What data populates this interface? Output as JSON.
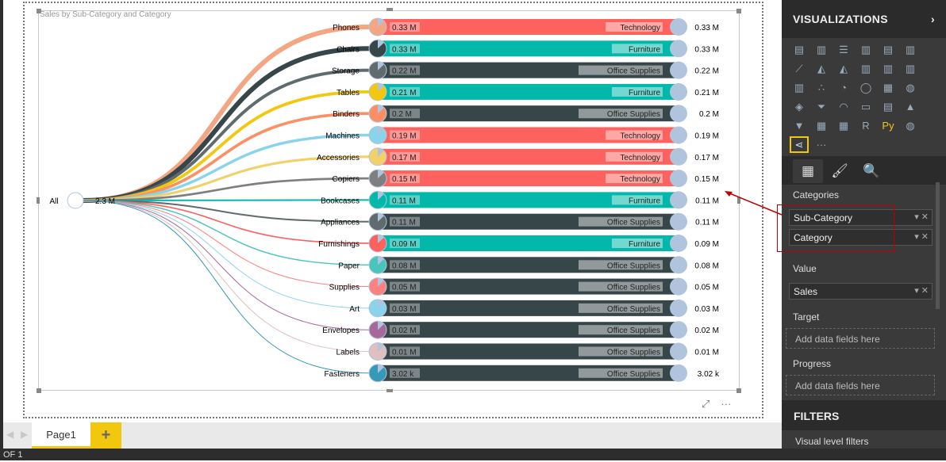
{
  "visual": {
    "title": "Sales by Sub-Category and Category",
    "root_label": "All",
    "root_value": "2.3 M"
  },
  "category_colors": {
    "Technology": "#fd625e",
    "Furniture": "#01b8aa",
    "Office Supplies": "#374649"
  },
  "rows": [
    {
      "sub": "Phones",
      "value": "0.33 M",
      "category": "Technology",
      "color": "#f4a582"
    },
    {
      "sub": "Chairs",
      "value": "0.33 M",
      "category": "Furniture",
      "color": "#374649"
    },
    {
      "sub": "Storage",
      "value": "0.22 M",
      "category": "Office Supplies",
      "color": "#5f6b6d"
    },
    {
      "sub": "Tables",
      "value": "0.21 M",
      "category": "Furniture",
      "color": "#f2c80f"
    },
    {
      "sub": "Binders",
      "value": "0.2 M",
      "category": "Office Supplies",
      "color": "#fd8f64"
    },
    {
      "sub": "Machines",
      "value": "0.19 M",
      "category": "Technology",
      "color": "#8ad4eb"
    },
    {
      "sub": "Accessories",
      "value": "0.17 M",
      "category": "Technology",
      "color": "#f2d16b"
    },
    {
      "sub": "Copiers",
      "value": "0.15 M",
      "category": "Technology",
      "color": "#7f7f7f"
    },
    {
      "sub": "Bookcases",
      "value": "0.11 M",
      "category": "Furniture",
      "color": "#01b8aa"
    },
    {
      "sub": "Appliances",
      "value": "0.11 M",
      "category": "Office Supplies",
      "color": "#5f6b6d"
    },
    {
      "sub": "Furnishings",
      "value": "0.09 M",
      "category": "Furniture",
      "color": "#fd625e"
    },
    {
      "sub": "Paper",
      "value": "0.08 M",
      "category": "Office Supplies",
      "color": "#4ac5bb"
    },
    {
      "sub": "Supplies",
      "value": "0.05 M",
      "category": "Office Supplies",
      "color": "#fb8281"
    },
    {
      "sub": "Art",
      "value": "0.03 M",
      "category": "Office Supplies",
      "color": "#8ad4eb"
    },
    {
      "sub": "Envelopes",
      "value": "0.02 M",
      "category": "Office Supplies",
      "color": "#a66999"
    },
    {
      "sub": "Labels",
      "value": "0.01 M",
      "category": "Office Supplies",
      "color": "#dfbfbf"
    },
    {
      "sub": "Fasteners",
      "value": "3.02 k",
      "category": "Office Supplies",
      "color": "#3599b8"
    }
  ],
  "pages": {
    "tab": "Page1",
    "add": "+",
    "status": "OF 1"
  },
  "panel": {
    "title": "VISUALIZATIONS",
    "collapse": "›",
    "viz_icons": [
      "stacked-bar",
      "stacked-column",
      "clustered-bar",
      "clustered-column",
      "100-bar",
      "100-column",
      "line",
      "area",
      "stacked-area",
      "line-column",
      "line-clustered",
      "ribbon",
      "waterfall",
      "scatter",
      "pie",
      "donut",
      "treemap",
      "map",
      "filled-map",
      "funnel",
      "gauge",
      "card",
      "multi-row-card",
      "kpi",
      "slicer",
      "table",
      "matrix",
      "r-visual",
      "python-visual",
      "arcgis",
      "custom-visual-selected",
      "more"
    ],
    "viz_glyphs": [
      "▤",
      "▥",
      "☰",
      "▥",
      "▤",
      "▥",
      "⟋",
      "◭",
      "◭",
      "▥",
      "▥",
      "▥",
      "▥",
      "∴",
      "◔",
      "◯",
      "▦",
      "◍",
      "◈",
      "⏷",
      "◠",
      "▭",
      "▤",
      "▲",
      "▼",
      "▦",
      "▦",
      "R",
      "Py",
      "◍",
      "⋖",
      "···"
    ],
    "categories_label": "Categories",
    "fields": [
      "Sub-Category",
      "Category"
    ],
    "value_label": "Value",
    "value_field": "Sales",
    "target_label": "Target",
    "target_placeholder": "Add data fields here",
    "progress_label": "Progress",
    "progress_placeholder": "Add data fields here",
    "filters": "FILTERS",
    "visual_filters": "Visual level filters"
  }
}
